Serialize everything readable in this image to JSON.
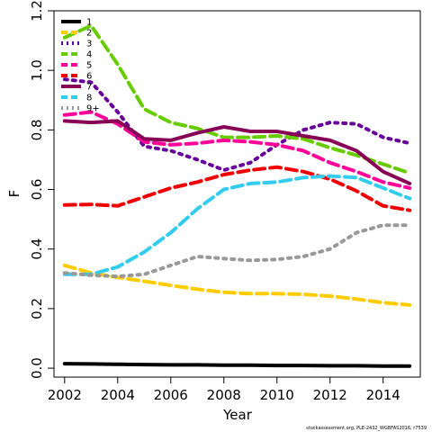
{
  "chart_data": {
    "type": "line",
    "xlabel": "Year",
    "ylabel": "F",
    "xlim": [
      2001.6,
      2015.4
    ],
    "ylim": [
      -0.03,
      1.2
    ],
    "xticks": [
      2002,
      2004,
      2006,
      2008,
      2010,
      2012,
      2014
    ],
    "yticks": [
      0.0,
      0.2,
      0.4,
      0.6,
      0.8,
      1.0,
      1.2
    ],
    "ytick_labels": [
      "0.0",
      "0.2",
      "0.4",
      "0.6",
      "0.8",
      "1.0",
      "1.2"
    ],
    "grid": false,
    "legend_position": "top-left",
    "x": [
      2002,
      2003,
      2004,
      2005,
      2006,
      2007,
      2008,
      2009,
      2010,
      2011,
      2012,
      2013,
      2014,
      2015
    ],
    "series": [
      {
        "name": "1",
        "color": "#000000",
        "dash": "solid",
        "values": [
          0.015,
          0.014,
          0.013,
          0.012,
          0.011,
          0.011,
          0.01,
          0.01,
          0.009,
          0.009,
          0.008,
          0.008,
          0.007,
          0.007
        ]
      },
      {
        "name": "2",
        "color": "#FFCC00",
        "dash": "dashed",
        "values": [
          0.345,
          0.32,
          0.305,
          0.292,
          0.278,
          0.265,
          0.255,
          0.25,
          0.25,
          0.248,
          0.242,
          0.232,
          0.22,
          0.212
        ]
      },
      {
        "name": "3",
        "color": "#660099",
        "dash": "dotted",
        "values": [
          0.97,
          0.96,
          0.86,
          0.745,
          0.73,
          0.7,
          0.665,
          0.69,
          0.75,
          0.8,
          0.825,
          0.82,
          0.775,
          0.755
        ]
      },
      {
        "name": "4",
        "color": "#66CC00",
        "dash": "dashed",
        "values": [
          1.11,
          1.15,
          1.02,
          0.87,
          0.825,
          0.805,
          0.775,
          0.775,
          0.78,
          0.77,
          0.74,
          0.715,
          0.685,
          0.655
        ]
      },
      {
        "name": "5",
        "color": "#FF0099",
        "dash": "dashed",
        "values": [
          0.85,
          0.86,
          0.82,
          0.76,
          0.75,
          0.755,
          0.765,
          0.76,
          0.75,
          0.73,
          0.69,
          0.66,
          0.625,
          0.605
        ]
      },
      {
        "name": "6",
        "color": "#EE0000",
        "dash": "dashed",
        "values": [
          0.548,
          0.55,
          0.545,
          0.575,
          0.605,
          0.625,
          0.65,
          0.665,
          0.675,
          0.66,
          0.635,
          0.595,
          0.545,
          0.53
        ]
      },
      {
        "name": "7",
        "color": "#880055",
        "dash": "solid",
        "values": [
          0.83,
          0.825,
          0.83,
          0.77,
          0.765,
          0.79,
          0.81,
          0.795,
          0.795,
          0.78,
          0.765,
          0.73,
          0.66,
          0.62
        ]
      },
      {
        "name": "8",
        "color": "#33CCEE",
        "dash": "dashed",
        "values": [
          0.315,
          0.315,
          0.34,
          0.39,
          0.455,
          0.535,
          0.6,
          0.62,
          0.625,
          0.64,
          0.645,
          0.64,
          0.605,
          0.57
        ]
      },
      {
        "name": "9+",
        "color": "#999999",
        "dash": "dotted",
        "values": [
          0.32,
          0.312,
          0.308,
          0.315,
          0.345,
          0.375,
          0.368,
          0.362,
          0.365,
          0.375,
          0.4,
          0.455,
          0.48,
          0.48
        ]
      }
    ]
  },
  "credit": "stockassessment.org, PLE-2432_WGBFAS2016, r7539"
}
